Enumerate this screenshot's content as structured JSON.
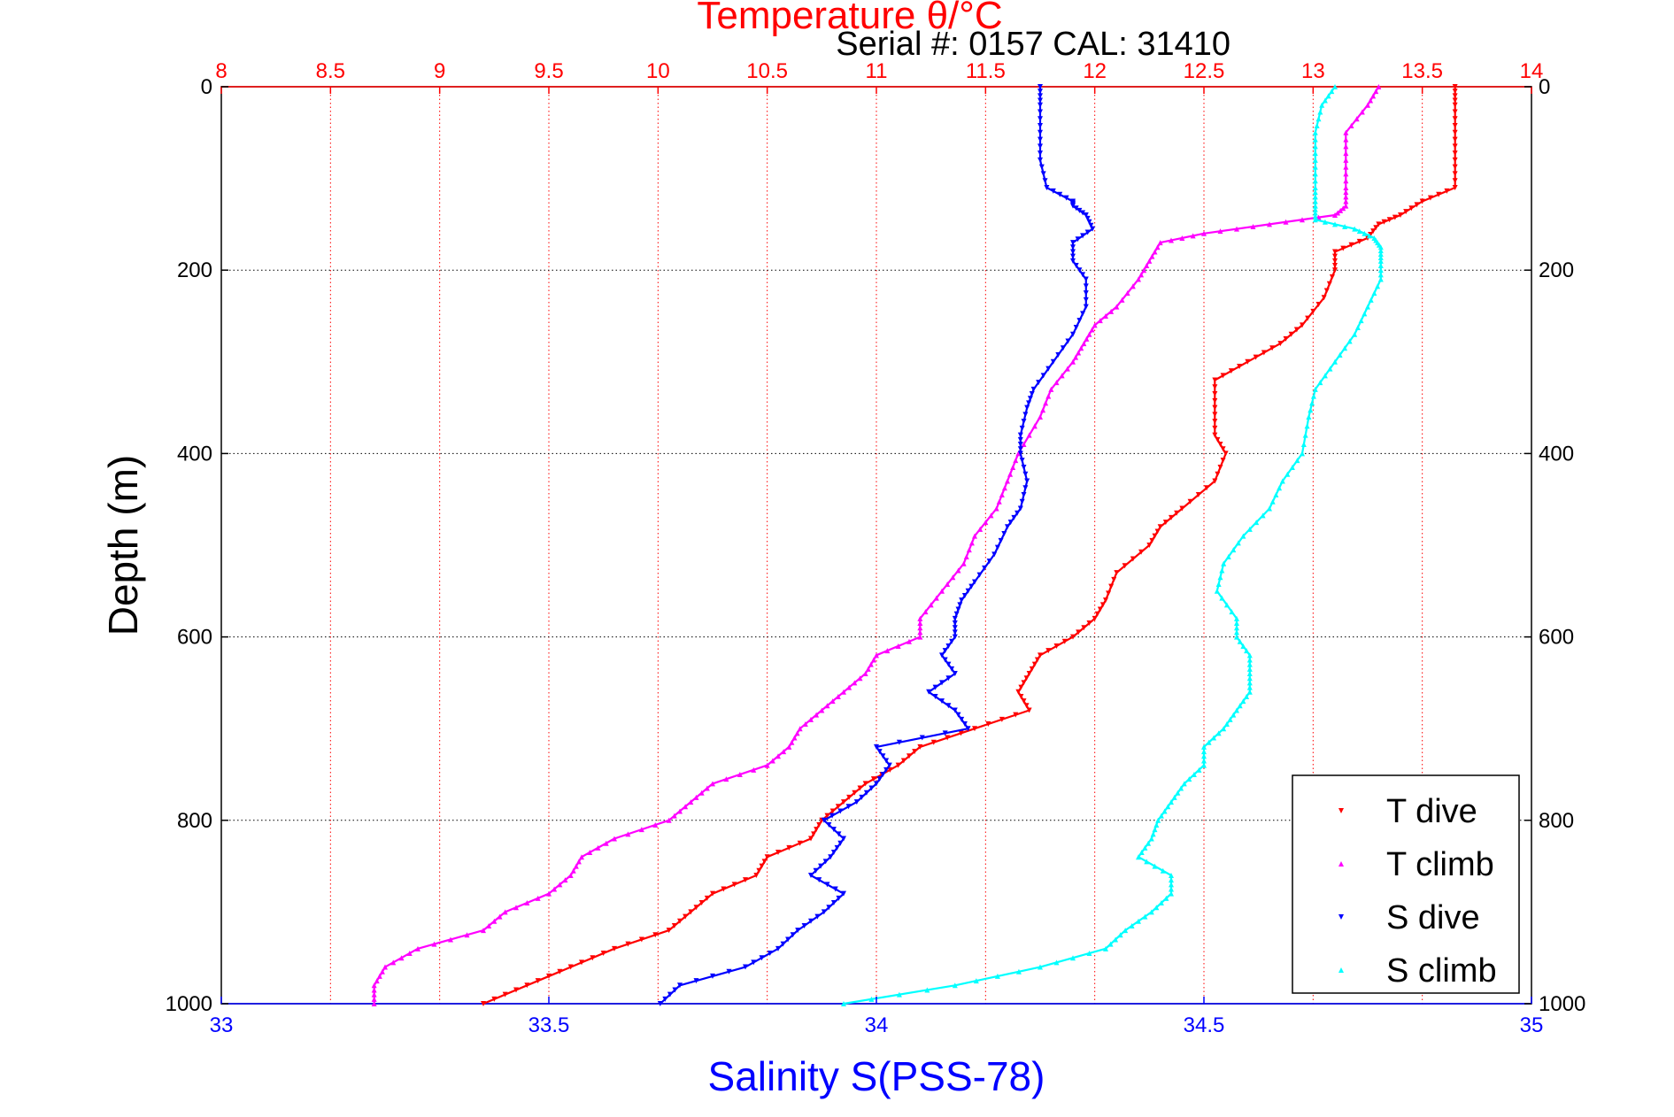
{
  "chart_data": {
    "type": "scatter",
    "title": "Temperature θ/°C",
    "subtitle": "Serial #: 0157  CAL: 31410",
    "xlabel": "Salinity S(PSS-78)",
    "ylabel": "Depth (m)",
    "top_axis": {
      "range": [
        8,
        14
      ],
      "ticks": [
        "8",
        "8.5",
        "9",
        "9.5",
        "10",
        "10.5",
        "11",
        "11.5",
        "12",
        "12.5",
        "13",
        "13.5",
        "14"
      ],
      "color": "#ff0000",
      "grid": true
    },
    "bottom_axis": {
      "range": [
        33,
        35
      ],
      "ticks": [
        "33",
        "33.5",
        "34",
        "34.5",
        "35"
      ],
      "color": "#0000ff"
    },
    "y_axis": {
      "range": [
        0,
        1000
      ],
      "reversed": true,
      "ticks": [
        "0",
        "200",
        "400",
        "600",
        "800",
        "1000"
      ],
      "grid": true
    },
    "legend": {
      "placement": "bottom-right",
      "entries": [
        "T dive",
        "T climb",
        "S dive",
        "S climb"
      ]
    },
    "series": [
      {
        "name": "T dive",
        "axis": "top",
        "color": "#ff0000",
        "marker": "down-triangle",
        "depth": [
          0,
          20,
          50,
          80,
          110,
          125,
          140,
          150,
          165,
          180,
          200,
          230,
          260,
          280,
          300,
          320,
          350,
          380,
          400,
          430,
          460,
          480,
          500,
          530,
          560,
          580,
          600,
          620,
          640,
          660,
          680,
          700,
          720,
          740,
          760,
          780,
          800,
          820,
          840,
          860,
          880,
          900,
          920,
          940,
          960,
          980,
          1000
        ],
        "temp": [
          13.65,
          13.65,
          13.65,
          13.65,
          13.65,
          13.5,
          13.4,
          13.3,
          13.25,
          13.1,
          13.1,
          13.05,
          12.95,
          12.85,
          12.7,
          12.55,
          12.55,
          12.55,
          12.6,
          12.55,
          12.4,
          12.3,
          12.25,
          12.1,
          12.05,
          12.0,
          11.9,
          11.75,
          11.7,
          11.65,
          11.7,
          11.45,
          11.2,
          11.1,
          10.95,
          10.85,
          10.75,
          10.7,
          10.5,
          10.45,
          10.25,
          10.15,
          10.05,
          9.8,
          9.6,
          9.4,
          9.2
        ]
      },
      {
        "name": "T climb",
        "axis": "top",
        "color": "#ff00ff",
        "marker": "up-triangle",
        "depth": [
          0,
          20,
          50,
          80,
          110,
          130,
          140,
          150,
          160,
          170,
          190,
          210,
          240,
          260,
          280,
          300,
          330,
          360,
          400,
          430,
          460,
          490,
          520,
          550,
          580,
          600,
          620,
          640,
          660,
          680,
          700,
          720,
          740,
          760,
          780,
          800,
          820,
          840,
          860,
          880,
          900,
          920,
          940,
          960,
          980,
          1000
        ],
        "temp": [
          13.3,
          13.25,
          13.15,
          13.15,
          13.15,
          13.15,
          13.1,
          12.8,
          12.5,
          12.3,
          12.25,
          12.2,
          12.1,
          12.0,
          11.95,
          11.9,
          11.8,
          11.75,
          11.65,
          11.6,
          11.55,
          11.45,
          11.4,
          11.3,
          11.2,
          11.2,
          11.0,
          10.95,
          10.85,
          10.75,
          10.65,
          10.6,
          10.5,
          10.25,
          10.15,
          10.05,
          9.8,
          9.65,
          9.6,
          9.5,
          9.3,
          9.2,
          8.9,
          8.75,
          8.7,
          8.7
        ]
      },
      {
        "name": "S dive",
        "axis": "bottom",
        "color": "#0000ff",
        "marker": "down-triangle",
        "depth": [
          0,
          20,
          50,
          80,
          110,
          125,
          130,
          140,
          155,
          170,
          190,
          210,
          240,
          270,
          300,
          330,
          350,
          380,
          400,
          430,
          460,
          480,
          510,
          540,
          560,
          580,
          600,
          620,
          640,
          660,
          680,
          700,
          720,
          740,
          760,
          780,
          800,
          820,
          840,
          860,
          880,
          900,
          920,
          940,
          960,
          980,
          1000
        ],
        "sal": [
          34.25,
          34.25,
          34.25,
          34.25,
          34.26,
          34.3,
          34.3,
          34.32,
          34.33,
          34.3,
          34.3,
          34.32,
          34.32,
          34.3,
          34.27,
          34.24,
          34.23,
          34.22,
          34.22,
          34.23,
          34.22,
          34.2,
          34.18,
          34.15,
          34.13,
          34.12,
          34.12,
          34.1,
          34.12,
          34.08,
          34.12,
          34.14,
          34.0,
          34.02,
          34.0,
          33.97,
          33.92,
          33.95,
          33.93,
          33.9,
          33.95,
          33.92,
          33.88,
          33.85,
          33.8,
          33.7,
          33.67
        ]
      },
      {
        "name": "S climb",
        "axis": "bottom",
        "color": "#00ffff",
        "marker": "up-triangle",
        "depth": [
          0,
          20,
          50,
          80,
          110,
          130,
          145,
          155,
          165,
          175,
          190,
          210,
          240,
          270,
          300,
          330,
          360,
          400,
          430,
          460,
          490,
          520,
          550,
          580,
          600,
          620,
          640,
          660,
          680,
          700,
          720,
          740,
          760,
          780,
          800,
          820,
          840,
          860,
          880,
          900,
          920,
          940,
          960,
          980,
          1000
        ],
        "sal": [
          34.7,
          34.68,
          34.67,
          34.67,
          34.67,
          34.67,
          34.67,
          34.73,
          34.76,
          34.77,
          34.77,
          34.77,
          34.75,
          34.73,
          34.7,
          34.67,
          34.66,
          34.65,
          34.62,
          34.6,
          34.56,
          34.53,
          34.52,
          34.55,
          34.55,
          34.57,
          34.57,
          34.57,
          34.55,
          34.53,
          34.5,
          34.5,
          34.47,
          34.45,
          34.43,
          34.42,
          34.4,
          34.45,
          34.45,
          34.42,
          34.38,
          34.35,
          34.25,
          34.12,
          33.95
        ]
      }
    ]
  }
}
